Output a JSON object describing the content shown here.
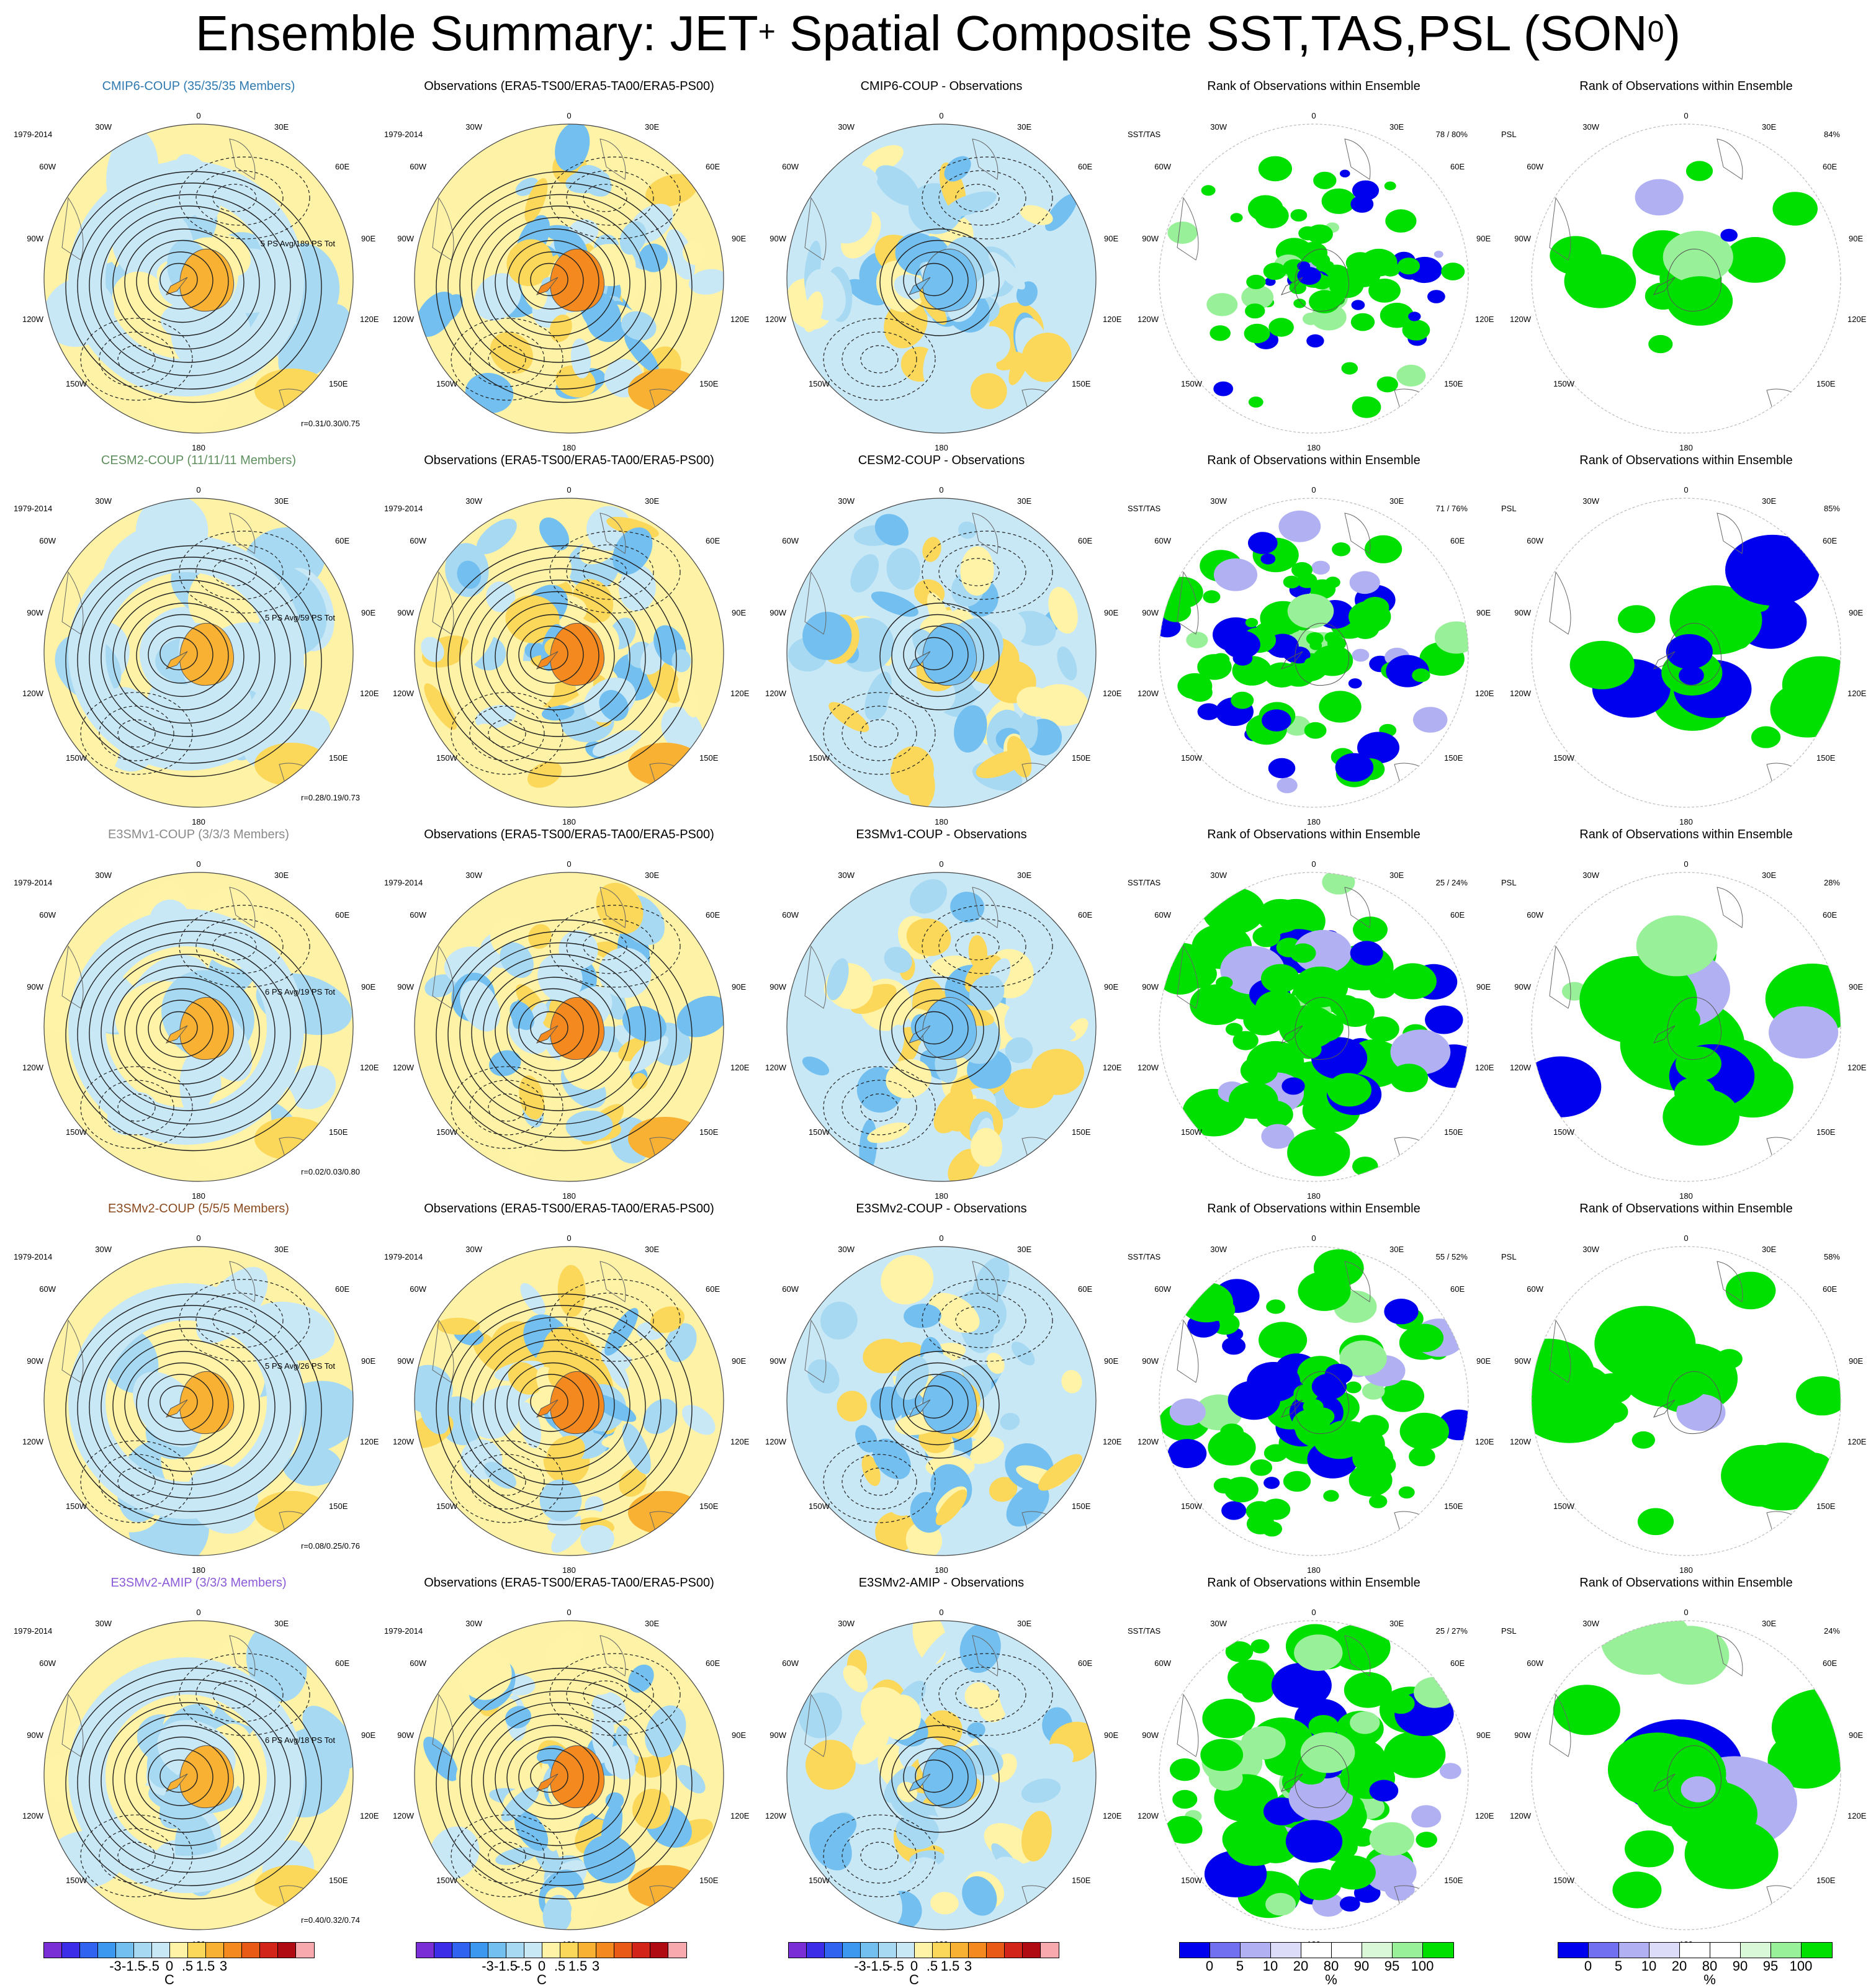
{
  "title": {
    "main": "Ensemble Summary: JET",
    "sup1": "+",
    "mid": " Spatial Composite SST,TAS,PSL (SON",
    "sup2": "0",
    "end": ")"
  },
  "colors": {
    "temp_scale": [
      "#7a2ed6",
      "#3c2ee8",
      "#2f63f0",
      "#3b98ee",
      "#72bff0",
      "#a7d9f2",
      "#c9e8f6",
      "#fff3a8",
      "#fbd75a",
      "#f8b133",
      "#f48a1f",
      "#ea5a17",
      "#d3241a",
      "#b00b12",
      "#f7a9ad"
    ],
    "rank_scale": [
      "#0000ee",
      "#7070f0",
      "#b0b0f2",
      "#dcdcf8",
      "#ffffff",
      "#ffffff",
      "#d8f8d8",
      "#98f098",
      "#00e000"
    ],
    "warm": "#f4a83a",
    "cool": "#a9d8f0",
    "neutral_yellow": "#fdf2a6",
    "land_ice": "#ffffff"
  },
  "labels": {
    "period": "1979-2014",
    "lon": [
      "0",
      "30E",
      "60E",
      "90E",
      "120E",
      "150E",
      "180",
      "150W",
      "120W",
      "90W",
      "60W",
      "30W"
    ],
    "sst_tas": "SST/TAS",
    "psl": "PSL",
    "rank_title": "Rank of Observations within Ensemble"
  },
  "rows": [
    {
      "model": {
        "title": "CMIP6-COUP (35/35/35 Members)",
        "color": "#2e7ab0",
        "ps_note": "5 PS Avg/189 PS Tot",
        "r_note": "r=0.31/0.30/0.75"
      },
      "obs": {
        "title": "Observations (ERA5-TS00/ERA5-TA00/ERA5-PS00)"
      },
      "diff": {
        "title": "CMIP6-COUP - Observations"
      },
      "rank1_pct": "78 /  80%",
      "rank2_pct": "84%",
      "sig": 0.25
    },
    {
      "model": {
        "title": "CESM2-COUP (11/11/11 Members)",
        "color": "#5f8f5f",
        "ps_note": "5 PS Avg/59 PS Tot",
        "r_note": "r=0.28/0.19/0.73"
      },
      "obs": {
        "title": "Observations (ERA5-TS00/ERA5-TA00/ERA5-PS00)"
      },
      "diff": {
        "title": "CESM2-COUP - Observations"
      },
      "rank1_pct": "71 /  76%",
      "rank2_pct": "85%",
      "sig": 0.45
    },
    {
      "model": {
        "title": "E3SMv1-COUP (3/3/3 Members)",
        "color": "#8a8a8a",
        "ps_note": "6 PS Avg/19 PS Tot",
        "r_note": "r=0.02/0.03/0.80"
      },
      "obs": {
        "title": "Observations (ERA5-TS00/ERA5-TA00/ERA5-PS00)"
      },
      "diff": {
        "title": "E3SMv1-COUP - Observations"
      },
      "rank1_pct": "25 /  24%",
      "rank2_pct": "28%",
      "sig": 0.8
    },
    {
      "model": {
        "title": "E3SMv2-COUP (5/5/5 Members)",
        "color": "#8b4a1e",
        "ps_note": "5 PS Avg/26 PS Tot",
        "r_note": "r=0.08/0.25/0.76"
      },
      "obs": {
        "title": "Observations (ERA5-TS00/ERA5-TA00/ERA5-PS00)"
      },
      "diff": {
        "title": "E3SMv2-COUP - Observations"
      },
      "rank1_pct": "55 /  52%",
      "rank2_pct": "58%",
      "sig": 0.6
    },
    {
      "model": {
        "title": "E3SMv2-AMIP (3/3/3 Members)",
        "color": "#8a5ad8",
        "ps_note": "6 PS Avg/18 PS Tot",
        "r_note": "r=0.40/0.32/0.74"
      },
      "obs": {
        "title": "Observations (ERA5-TS00/ERA5-TA00/ERA5-PS00)"
      },
      "diff": {
        "title": "E3SMv2-AMIP - Observations"
      },
      "rank1_pct": "25 /  27%",
      "rank2_pct": "24%",
      "sig": 0.8
    }
  ],
  "colorbars": {
    "temp": {
      "ticks": [
        "-3",
        "-1.5",
        "-.5",
        "0",
        ".5",
        "1.5",
        "3"
      ],
      "unit": "C"
    },
    "rank": {
      "ticks": [
        "0",
        "5",
        "10",
        "20",
        "80",
        "90",
        "95",
        "100"
      ],
      "unit": "%"
    }
  },
  "chart_data": {
    "type": "heatmap",
    "projection": "south polar stereographic",
    "grid": "5 rows x 5 columns of polar map panels",
    "columns": [
      "model composite",
      "observations",
      "model - observations",
      "rank SST/TAS",
      "rank PSL"
    ],
    "contours": "PSL (solid positive, dashed negative)",
    "temp_levels": [
      -3,
      -1.5,
      -0.5,
      0,
      0.5,
      1.5,
      3
    ],
    "rank_levels": [
      0,
      5,
      10,
      20,
      80,
      90,
      95,
      100
    ]
  }
}
